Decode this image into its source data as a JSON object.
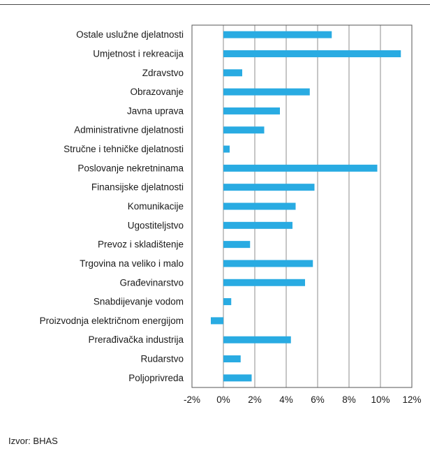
{
  "chart_data": {
    "type": "bar",
    "orientation": "horizontal",
    "categories": [
      "Ostale uslužne djelatnosti",
      "Umjetnost i rekreacija",
      "Zdravstvo",
      "Obrazovanje",
      "Javna uprava",
      "Administrativne djelatnosti",
      "Stručne i tehničke djelatnosti",
      "Poslovanje nekretninama",
      "Finansijske djelatnosti",
      "Komunikacije",
      "Ugostiteljstvo",
      "Prevoz i skladištenje",
      "Trgovina na veliko i malo",
      "Građevinarstvo",
      "Snabdijevanje vodom",
      "Proizvodnja električnom energijom",
      "Prerađivačka industrija",
      "Rudarstvo",
      "Poljoprivreda"
    ],
    "values": [
      6.9,
      11.3,
      1.2,
      5.5,
      3.6,
      2.6,
      0.4,
      9.8,
      5.8,
      4.6,
      4.4,
      1.7,
      5.7,
      5.2,
      0.5,
      -0.8,
      4.3,
      1.1,
      1.8
    ],
    "xlim": [
      -2,
      12
    ],
    "xticks": [
      "-2%",
      "0%",
      "2%",
      "4%",
      "6%",
      "8%",
      "10%",
      "12%"
    ],
    "grid": "vertical",
    "bar_color": "#29abe2"
  },
  "source": "Izvor: BHAS"
}
